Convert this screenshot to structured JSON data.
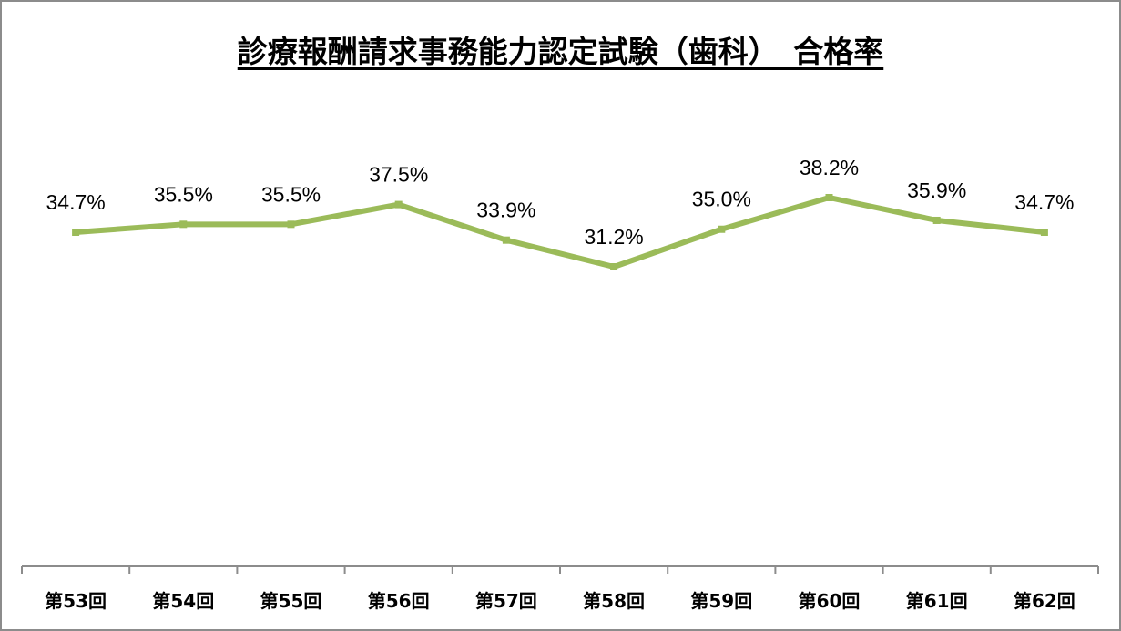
{
  "chart_data": {
    "type": "line",
    "title": "診療報酬請求事務能力認定試験（歯科）　合格率",
    "xlabel": "",
    "ylabel": "",
    "categories": [
      "第53回",
      "第54回",
      "第55回",
      "第56回",
      "第57回",
      "第58回",
      "第59回",
      "第60回",
      "第61回",
      "第62回"
    ],
    "series": [
      {
        "name": "合格率",
        "values": [
          34.7,
          35.5,
          35.5,
          37.5,
          33.9,
          31.2,
          35.0,
          38.2,
          35.9,
          34.7
        ],
        "labels": [
          "34.7%",
          "35.5%",
          "35.5%",
          "37.5%",
          "33.9%",
          "31.2%",
          "35.0%",
          "38.2%",
          "35.9%",
          "34.7%"
        ],
        "color": "#9bbb59"
      }
    ],
    "ylim": [
      0,
      40
    ],
    "grid": false,
    "legend": "none",
    "data_labels": true
  },
  "style": {
    "line_color": "#9bbb59",
    "axis_color": "#8c8c8c",
    "border_color": "#8c8c8c"
  }
}
